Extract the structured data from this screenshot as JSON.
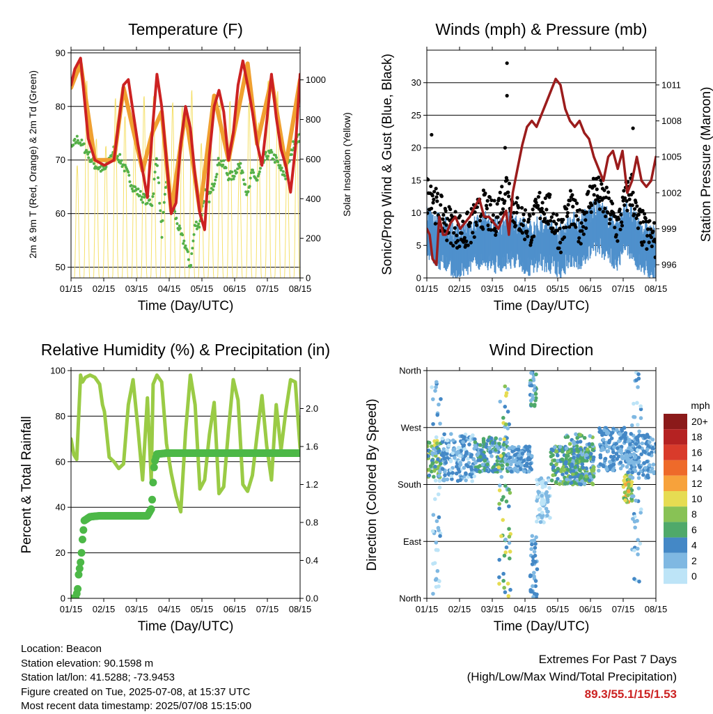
{
  "x_tick_labels": [
    "01/15",
    "02/15",
    "03/15",
    "04/15",
    "05/15",
    "06/15",
    "07/15",
    "08/15"
  ],
  "colors": {
    "temp_2m": "#cc2222",
    "temp_9m": "#f0a030",
    "dewpoint": "#55b048",
    "solar": "#f5e06a",
    "gust": "#000000",
    "wind": "#4f90cc",
    "pressure": "#9b1c1c",
    "rh": "#9acb45",
    "precip": "#4cb847"
  },
  "info": {
    "location": "Location: Beacon",
    "elevation": "Station elevation: 90.1598 m",
    "latlon": "Station lat/lon: 41.5288; -73.9453",
    "created": "Figure created on Tue, 2025-07-08, at 15:37 UTC",
    "recent": "Most recent data timestamp: 2025/07/08 15:15:00"
  },
  "extremes": {
    "line1": "Extremes For Past 7 Days",
    "line2": "(High/Low/Max Wind/Total Precipitation)",
    "values": "89.3/55.1/15/1.53"
  },
  "chart_data": [
    {
      "type": "line",
      "title": "Temperature (F)",
      "xlabel": "Time (Day/UTC)",
      "ylabel": "2m & 9m T (Red, Orange) & 2m Td (Green)",
      "y2label": "Solar Insolation (Yellow)",
      "ylim": [
        48,
        90.5
      ],
      "yticks": [
        50,
        60,
        70,
        80,
        90
      ],
      "y2lim": [
        0,
        1150
      ],
      "y2ticks": [
        0,
        200,
        400,
        600,
        800,
        1000
      ],
      "grid": true,
      "series": [
        {
          "name": "2m T",
          "color_key": "temp_2m",
          "x": [
            0,
            0.4,
            1,
            1.8,
            2.5,
            3,
            3.5,
            4.5,
            5,
            5.5,
            6,
            6.5,
            7,
            7.5,
            8,
            8.5,
            9,
            9.5,
            10,
            10.5,
            11,
            11.5,
            12,
            12.5,
            13,
            13.5,
            14,
            14.5,
            15,
            15.5,
            16,
            16.5,
            17,
            17.5,
            18,
            18.5,
            19,
            19.5,
            20,
            20.5,
            21,
            21.5,
            22,
            22.5,
            23,
            23.5,
            24
          ],
          "y": [
            84,
            87,
            89,
            74,
            70,
            69.5,
            69,
            70,
            77,
            84,
            85,
            79,
            73,
            68,
            63,
            75,
            86,
            80,
            70,
            60,
            62,
            73,
            80,
            76,
            67,
            60,
            57,
            71,
            80,
            83,
            79,
            70,
            75,
            84,
            88.5,
            84,
            79,
            73,
            69,
            77,
            86,
            78,
            72,
            69,
            64,
            72,
            86
          ]
        },
        {
          "name": "9m T",
          "color_key": "temp_9m",
          "x": [
            0,
            1,
            2.5,
            4.5,
            5.5,
            7.5,
            8.5,
            9.5,
            10.5,
            12,
            13.5,
            15,
            16.5,
            18.5,
            19.5,
            21,
            22.5,
            24
          ],
          "y": [
            83.5,
            88,
            70,
            70,
            83.5,
            68,
            75,
            79,
            60.5,
            79,
            60.5,
            82,
            70,
            88,
            73,
            85,
            69,
            85
          ]
        },
        {
          "name": "2m Td",
          "color_key": "dewpoint",
          "x": [
            0,
            0.7,
            1.5,
            2.5,
            3.5,
            4.5,
            5.5,
            6.5,
            7.5,
            8.5,
            9,
            9.5,
            10,
            10.5,
            11,
            11.5,
            12,
            12.5,
            13,
            13.5,
            14,
            14.5,
            15,
            15.5,
            16,
            16.5,
            17,
            17.5,
            18,
            18.5,
            19,
            19.5,
            20,
            20.5,
            21,
            21.5,
            22,
            22.5,
            23,
            23.5,
            24
          ],
          "y": [
            72,
            74,
            72,
            69,
            68,
            72,
            69,
            65,
            63,
            62,
            71,
            56,
            66,
            63,
            59,
            56,
            54,
            50,
            58,
            58,
            64,
            63,
            66,
            70,
            69,
            67,
            67,
            69,
            68,
            63,
            68,
            66,
            69,
            71,
            71,
            70,
            68,
            67,
            71,
            74,
            74
          ]
        },
        {
          "name": "Solar Insolation",
          "axis": "right",
          "color_key": "solar",
          "type": "daily-cycle",
          "days": 24,
          "peak": 1040
        }
      ]
    },
    {
      "type": "scatter+line",
      "title": "Winds (mph) & Pressure (mb)",
      "xlabel": "Time (Day/UTC)",
      "ylabel": "Sonic/Prop Wind & Gust (Blue, Black)",
      "y2label": "Station Pressure (Maroon)",
      "ylim": [
        0,
        35
      ],
      "yticks": [
        0,
        5,
        10,
        15,
        20,
        25,
        30
      ],
      "y2lim": [
        994.9,
        1013.9
      ],
      "y2ticks": [
        996,
        999,
        1002,
        1005,
        1008,
        1011
      ],
      "grid": true,
      "gust_outliers": [
        {
          "x": 0.5,
          "y": 22
        },
        {
          "x": 8.4,
          "y": 28
        },
        {
          "x": 8.4,
          "y": 33
        },
        {
          "x": 8.2,
          "y": 20
        },
        {
          "x": 21.6,
          "y": 23
        }
      ],
      "series": [
        {
          "name": "Gust",
          "color_key": "gust",
          "x": [
            0,
            0.5,
            1,
            2,
            3,
            4,
            5,
            6,
            7,
            8,
            8.5,
            9,
            10,
            11,
            12,
            13,
            14,
            15,
            16,
            17,
            17.5,
            18,
            19,
            20,
            21,
            21.5,
            22,
            23,
            24
          ],
          "y": [
            13,
            14,
            11,
            9,
            8,
            7,
            9,
            11,
            9,
            13,
            15,
            11,
            9,
            8,
            12,
            10,
            7,
            11,
            8,
            12,
            14,
            13,
            11,
            8,
            13,
            14,
            9,
            7,
            6
          ]
        },
        {
          "name": "Wind",
          "color_key": "wind",
          "x": [
            0,
            1,
            2,
            3,
            4,
            5,
            6,
            7,
            8,
            9,
            10,
            11,
            12,
            13,
            14,
            15,
            16,
            17,
            18,
            19,
            20,
            21,
            22,
            23,
            24
          ],
          "y": [
            7,
            5.5,
            4.5,
            3.5,
            4,
            5,
            5.5,
            4.5,
            5,
            5.5,
            4.5,
            4,
            5,
            4.5,
            3.5,
            5.5,
            5,
            6.5,
            7.5,
            6,
            5,
            7.5,
            5,
            4,
            3
          ]
        },
        {
          "name": "Pressure",
          "axis": "right",
          "color_key": "pressure",
          "x": [
            0,
            0.3,
            0.6,
            1,
            1.3,
            1.7,
            2,
            2.5,
            3,
            3.5,
            4,
            4.5,
            5,
            5.5,
            6,
            6.5,
            7,
            7.5,
            8,
            8.3,
            8.6,
            9,
            9.5,
            10,
            10.5,
            11,
            11.5,
            12,
            12.5,
            13,
            13.5,
            14,
            14.5,
            15,
            15.5,
            16,
            16.5,
            17,
            17.5,
            18,
            18.5,
            19,
            19.5,
            20,
            20.5,
            21,
            21.5,
            22,
            22.5,
            23,
            23.5,
            24
          ],
          "y": [
            999,
            998.5,
            996.5,
            996,
            1000,
            998.5,
            998.5,
            999.5,
            1000,
            999,
            999.5,
            1000,
            1000.8,
            1001.5,
            1000,
            1000,
            999.5,
            999,
            1000,
            1000.5,
            998.5,
            1002,
            1004,
            1006,
            1007.5,
            1008,
            1007.5,
            1008.5,
            1009.5,
            1010.5,
            1011.5,
            1011,
            1009,
            1008,
            1007.5,
            1008,
            1007,
            1006.5,
            1005,
            1004,
            1003,
            1005,
            1005.5,
            1004,
            1005.5,
            1002,
            1003,
            1005,
            1003,
            1002.5,
            1003,
            1005
          ]
        }
      ]
    },
    {
      "type": "line+scatter",
      "title": "Relative Humidity (%) & Precipitation (in)",
      "xlabel": "Time (Day/UTC)",
      "ylabel": "Percent & Total Rainfall",
      "ylim": [
        0,
        100
      ],
      "yticks": [
        0,
        20,
        40,
        60,
        80,
        100
      ],
      "y2lim": [
        0,
        2.4
      ],
      "y2ticks": [
        0.0,
        0.4,
        0.8,
        1.2,
        1.6,
        2.0
      ],
      "y2tick_labels": [
        "0.0",
        "0.4",
        "0.8",
        "1.2",
        "1.6",
        "2.0"
      ],
      "grid": true,
      "series": [
        {
          "name": "RH",
          "color_key": "rh",
          "x": [
            0,
            0.3,
            0.6,
            1,
            1.2,
            1.5,
            2,
            2.5,
            3,
            3.3,
            3.5,
            4,
            4.5,
            5,
            5.5,
            6,
            6.5,
            7,
            7.5,
            8,
            8.4,
            8.6,
            9,
            9.5,
            10,
            10.5,
            11,
            11.5,
            12,
            12.5,
            13,
            13.5,
            14,
            14.5,
            15,
            15.5,
            16,
            16.5,
            17,
            17.5,
            18,
            18.5,
            19,
            19.5,
            20,
            20.5,
            21,
            21.5,
            22,
            22.5,
            23,
            23.5,
            24
          ],
          "y": [
            70,
            63,
            61,
            98,
            95,
            97,
            98,
            97,
            94,
            85,
            82,
            62,
            60,
            57,
            59,
            85,
            96,
            75,
            52,
            88,
            52,
            94,
            98,
            95,
            68,
            55,
            45,
            38,
            73,
            98,
            85,
            48,
            52,
            72,
            86,
            46,
            49,
            74,
            96,
            87,
            50,
            47,
            54,
            72,
            89,
            67,
            52,
            85,
            65,
            82,
            96,
            95,
            66
          ]
        },
        {
          "name": "Precip",
          "axis": "right",
          "color_key": "precip",
          "x": [
            0,
            0.5,
            0.7,
            0.8,
            1,
            1.1,
            1.2,
            1.3,
            1.4,
            2,
            3,
            4,
            5,
            6,
            7,
            7.5,
            8,
            8.4,
            8.5,
            8.6,
            8.7,
            8.8,
            9,
            10,
            12,
            14,
            16,
            18,
            20,
            22,
            24
          ],
          "y": [
            0,
            0,
            0.1,
            0.25,
            0.38,
            0.48,
            0.62,
            0.72,
            0.82,
            0.86,
            0.87,
            0.87,
            0.87,
            0.87,
            0.87,
            0.87,
            0.87,
            0.94,
            1.04,
            1.22,
            1.38,
            1.45,
            1.52,
            1.53,
            1.53,
            1.53,
            1.53,
            1.53,
            1.53,
            1.53,
            1.53
          ]
        }
      ]
    },
    {
      "type": "scatter",
      "title": "Wind Direction",
      "xlabel": "Time (Day/UTC)",
      "ylabel": "Direction (Colored By Speed)",
      "yticks": [
        "North",
        "East",
        "South",
        "West",
        "North"
      ],
      "ylim": [
        0,
        360
      ],
      "colorbar": {
        "title": "mph",
        "labels": [
          "20+",
          "18",
          "16",
          "14",
          "12",
          "10",
          "8",
          "6",
          "4",
          "2",
          "0"
        ],
        "colors": [
          "#8b1a1a",
          "#b52222",
          "#d93b2b",
          "#ee6a2a",
          "#f7a23b",
          "#e6dc52",
          "#88c255",
          "#4fa96a",
          "#4488c6",
          "#7fb8e2",
          "#bde4f7"
        ]
      },
      "clusters": [
        {
          "x": [
            0,
            1.5
          ],
          "dir": [
            190,
            250
          ],
          "speed": [
            3,
            11
          ]
        },
        {
          "x": [
            0.5,
            1.5
          ],
          "dir": [
            0,
            360
          ],
          "speed": [
            1,
            5
          ]
        },
        {
          "x": [
            1.5,
            5
          ],
          "dir": [
            185,
            260
          ],
          "speed": [
            1,
            6
          ]
        },
        {
          "x": [
            5,
            8.5
          ],
          "dir": [
            200,
            255
          ],
          "speed": [
            2,
            8
          ]
        },
        {
          "x": [
            7.5,
            8.8
          ],
          "dir": [
            0,
            360
          ],
          "speed": [
            2,
            12
          ]
        },
        {
          "x": [
            8.5,
            11
          ],
          "dir": [
            200,
            240
          ],
          "speed": [
            2,
            6
          ]
        },
        {
          "x": [
            10.8,
            11.6
          ],
          "dir": [
            0,
            100
          ],
          "speed": [
            2,
            6
          ]
        },
        {
          "x": [
            10.8,
            11.5
          ],
          "dir": [
            300,
            360
          ],
          "speed": [
            2,
            8
          ]
        },
        {
          "x": [
            11.5,
            13
          ],
          "dir": [
            120,
            190
          ],
          "speed": [
            1,
            3
          ]
        },
        {
          "x": [
            13,
            17.5
          ],
          "dir": [
            180,
            240
          ],
          "speed": [
            3,
            10
          ]
        },
        {
          "x": [
            14.5,
            17.5
          ],
          "dir": [
            180,
            260
          ],
          "speed": [
            2,
            9
          ]
        },
        {
          "x": [
            18,
            21
          ],
          "dir": [
            200,
            270
          ],
          "speed": [
            2,
            6
          ]
        },
        {
          "x": [
            20.5,
            21.5
          ],
          "dir": [
            150,
            195
          ],
          "speed": [
            6,
            13
          ]
        },
        {
          "x": [
            21,
            24
          ],
          "dir": [
            190,
            260
          ],
          "speed": [
            2,
            6
          ]
        },
        {
          "x": [
            21.5,
            22.5
          ],
          "dir": [
            0,
            360
          ],
          "speed": [
            1,
            5
          ]
        }
      ]
    }
  ]
}
